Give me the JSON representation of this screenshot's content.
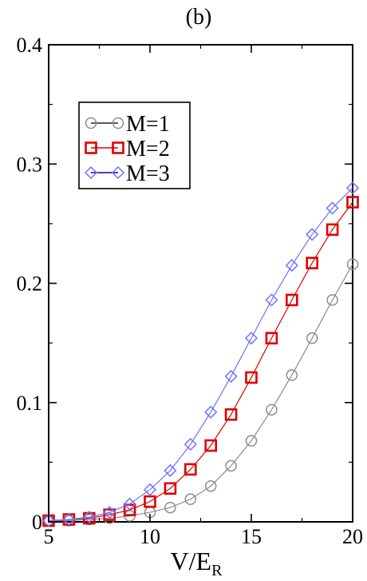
{
  "chart_data": {
    "type": "line",
    "title": "(b)",
    "xlabel": "V/E",
    "xlabel_sub": "R",
    "ylabel": "",
    "xlim": [
      5,
      20
    ],
    "ylim": [
      0,
      0.4
    ],
    "xticks": [
      5,
      10,
      15,
      20
    ],
    "xtick_labels": [
      "5",
      "10",
      "15",
      "20"
    ],
    "yticks": [
      0,
      0.1,
      0.2,
      0.3,
      0.4
    ],
    "ytick_labels": [
      "0",
      "0.1",
      "0.2",
      "0.3",
      "0.4"
    ],
    "grid": false,
    "legend_position": "top-left",
    "x": [
      5,
      6,
      7,
      8,
      9,
      10,
      11,
      12,
      13,
      14,
      15,
      16,
      17,
      18,
      19,
      20
    ],
    "series": [
      {
        "name": "M=1",
        "marker": "circle",
        "color": "#8c8c8c",
        "values": [
          0.001,
          0.001,
          0.002,
          0.003,
          0.005,
          0.008,
          0.012,
          0.019,
          0.03,
          0.047,
          0.068,
          0.094,
          0.123,
          0.154,
          0.186,
          0.216
        ]
      },
      {
        "name": "M=2",
        "marker": "square",
        "color": "#e00000",
        "values": [
          0.001,
          0.002,
          0.003,
          0.006,
          0.01,
          0.017,
          0.028,
          0.044,
          0.064,
          0.09,
          0.121,
          0.154,
          0.186,
          0.217,
          0.245,
          0.268
        ]
      },
      {
        "name": "M=3",
        "marker": "diamond",
        "color": "#6f72ff",
        "values": [
          0.001,
          0.002,
          0.004,
          0.008,
          0.015,
          0.027,
          0.043,
          0.065,
          0.092,
          0.122,
          0.154,
          0.186,
          0.215,
          0.241,
          0.263,
          0.28
        ]
      }
    ]
  }
}
